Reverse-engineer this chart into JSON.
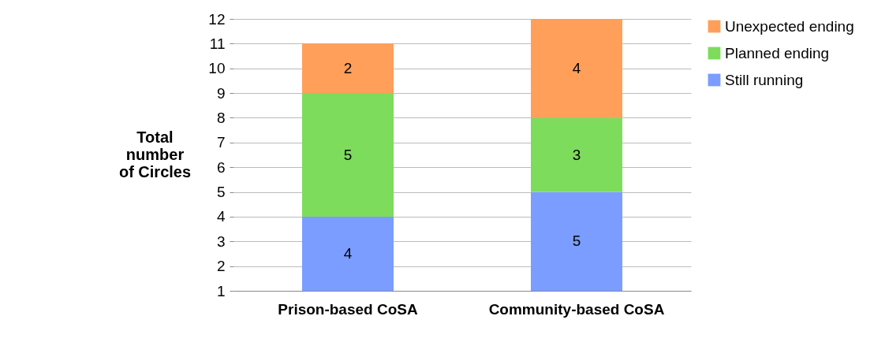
{
  "chart_data": {
    "type": "bar",
    "stacked": true,
    "ylabel": "Total number of Circles",
    "categories": [
      "Prison-based CoSA",
      "Community-based CoSA"
    ],
    "series": [
      {
        "name": "Still running",
        "color": "#7b9dff",
        "values": [
          4,
          5
        ]
      },
      {
        "name": "Planned ending",
        "color": "#7ddc5c",
        "values": [
          5,
          3
        ]
      },
      {
        "name": "Unexpected ending",
        "color": "#ff9f59",
        "values": [
          2,
          4
        ]
      }
    ],
    "ylim": [
      1,
      12
    ],
    "yticks": [
      1,
      2,
      3,
      4,
      5,
      6,
      7,
      8,
      9,
      10,
      11,
      12
    ],
    "grid": "y",
    "legend": "right",
    "data_labels": true
  }
}
